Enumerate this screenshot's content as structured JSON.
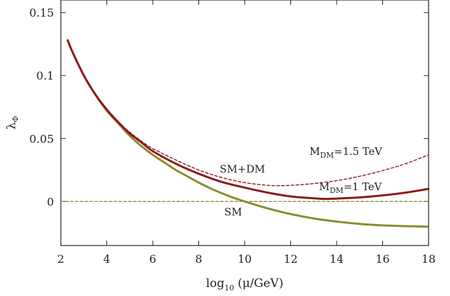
{
  "chart_data": {
    "type": "line",
    "title": "",
    "xlabel": "log10 (μ/GeV)",
    "xlabel_main": "log",
    "xlabel_sub": "10",
    "xlabel_rest": " (μ/GeV)",
    "ylabel": "λΦ",
    "ylabel_main": "λ",
    "ylabel_sub": "Φ",
    "xlim": [
      2,
      18
    ],
    "ylim": [
      -0.035,
      0.16
    ],
    "xticks": [
      2,
      4,
      6,
      8,
      10,
      12,
      14,
      16,
      18
    ],
    "xtick_labels": [
      "2",
      "4",
      "6",
      "8",
      "10",
      "12",
      "14",
      "16",
      "18"
    ],
    "yticks": [
      0,
      0.05,
      0.1,
      0.15
    ],
    "ytick_labels": [
      "0",
      "0.05",
      "0.1",
      "0.15"
    ],
    "grid": false,
    "legend": "none",
    "series": [
      {
        "color": "#8b8b2e",
        "style": "solid",
        "x": [
          2.3,
          2.5,
          3,
          3.5,
          4,
          4.5,
          5,
          5.5,
          6,
          6.5,
          7,
          7.5,
          8,
          8.5,
          9,
          9.5,
          10,
          11,
          12,
          13,
          14,
          15,
          16,
          17,
          18
        ],
        "y": [
          0.128,
          0.119,
          0.1,
          0.085,
          0.072,
          0.062,
          0.052,
          0.044,
          0.037,
          0.031,
          0.025,
          0.02,
          0.015,
          0.0105,
          0.0065,
          0.003,
          0.0,
          -0.0055,
          -0.01,
          -0.0135,
          -0.016,
          -0.0178,
          -0.019,
          -0.0196,
          -0.02
        ]
      },
      {
        "color": "#8b1a1a",
        "style": "solid",
        "x": [
          2.3,
          2.5,
          3,
          3.5,
          4,
          4.5,
          5,
          5.5,
          6,
          7,
          8,
          9,
          10,
          11,
          12,
          13,
          13.5,
          14,
          15,
          16,
          17,
          18
        ],
        "y": [
          0.128,
          0.119,
          0.1,
          0.085,
          0.073,
          0.063,
          0.054,
          0.047,
          0.04,
          0.03,
          0.022,
          0.0155,
          0.011,
          0.007,
          0.004,
          0.0025,
          0.002,
          0.0023,
          0.0032,
          0.0048,
          0.007,
          0.01
        ]
      },
      {
        "color": "#8b1a1a",
        "style": "dashed",
        "x": [
          2.3,
          2.5,
          3,
          3.5,
          4,
          4.5,
          5,
          5.5,
          6,
          7,
          8,
          9,
          10,
          11,
          11.5,
          12,
          13,
          14,
          15,
          16,
          17,
          18
        ],
        "y": [
          0.128,
          0.119,
          0.1,
          0.085,
          0.073,
          0.063,
          0.055,
          0.048,
          0.042,
          0.033,
          0.025,
          0.019,
          0.015,
          0.0128,
          0.0125,
          0.0128,
          0.0142,
          0.0165,
          0.02,
          0.0245,
          0.03,
          0.037
        ]
      },
      {
        "color": "#8b8b2e",
        "style": "dashed",
        "x": [
          2,
          18
        ],
        "y": [
          0,
          0
        ]
      }
    ],
    "annotations": [
      {
        "text": "SM+DM",
        "x": 9.9,
        "y": 0.023
      },
      {
        "text": "SM",
        "x": 9.5,
        "y": -0.011
      },
      {
        "text_main": "M",
        "text_sub": "DM",
        "text_rest": "=1.5 TeV",
        "x": 14.4,
        "y": 0.037
      },
      {
        "text_main": "M",
        "text_sub": "DM",
        "text_rest": "=1 TeV",
        "x": 14.6,
        "y": 0.009
      }
    ]
  }
}
